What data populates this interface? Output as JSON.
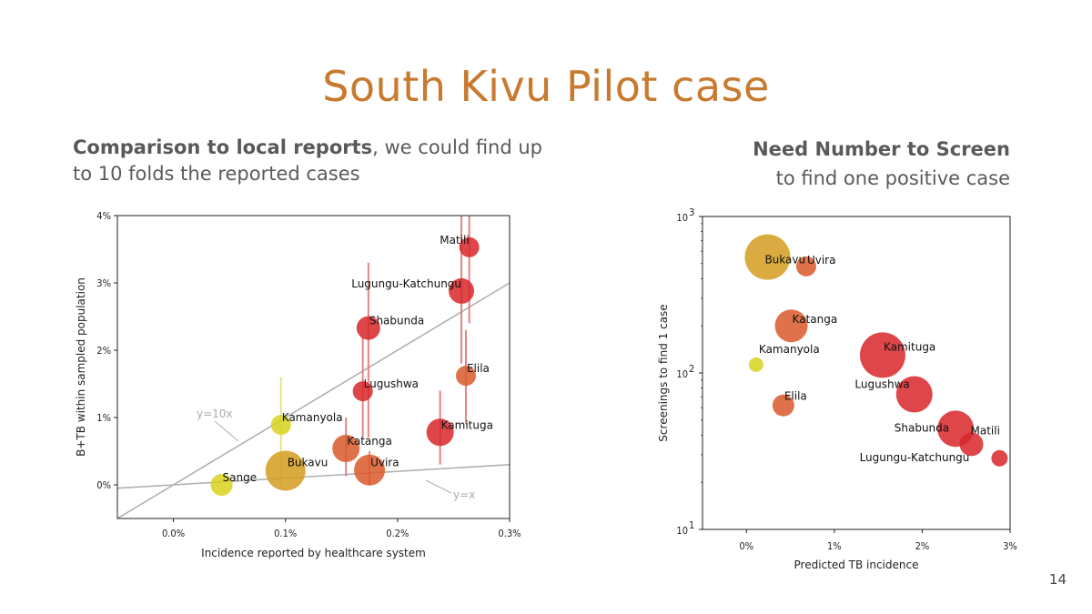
{
  "slide": {
    "title": "South Kivu Pilot case",
    "left_subtitle_bold": "Comparison to local reports",
    "left_subtitle_rest": ", we could find up to 10 folds the reported cases",
    "right_subtitle_bold": "Need Number to Screen",
    "right_subtitle_rest": "to find one positive case",
    "page_number": "14"
  },
  "colors": {
    "title": "#c87a2f",
    "low": "#d8d21c",
    "mid_low": "#d49c1e",
    "mid": "#d9592a",
    "high": "#d8262a",
    "reference_line": "#b0b0b0",
    "error_bar": "#e07070"
  },
  "chart_data": [
    {
      "type": "scatter",
      "xlabel": "Incidence reported by healthcare system",
      "ylabel": "B+TB within sampled population",
      "xlim": [
        -0.0005,
        0.003
      ],
      "ylim": [
        -0.005,
        0.04
      ],
      "x_ticks": [
        0.0,
        0.001,
        0.002,
        0.003
      ],
      "x_tick_labels": [
        "0.0%",
        "0.1%",
        "0.2%",
        "0.3%"
      ],
      "y_ticks": [
        0.0,
        0.01,
        0.02,
        0.03,
        0.04
      ],
      "y_tick_labels": [
        "0%",
        "1%",
        "2%",
        "3%",
        "4%"
      ],
      "reference_lines": [
        {
          "label": "y=10x",
          "slope": 10
        },
        {
          "label": "y=x",
          "slope": 1
        }
      ],
      "points": [
        {
          "name": "Sange",
          "x": 0.00043,
          "y": 0.0,
          "size": 12,
          "color": "low",
          "err": [
            0.0,
            0.0
          ]
        },
        {
          "name": "Kamanyola",
          "x": 0.00096,
          "y": 0.0089,
          "size": 11,
          "color": "low",
          "err": [
            0.0,
            0.016
          ]
        },
        {
          "name": "Bukavu",
          "x": 0.001,
          "y": 0.0021,
          "size": 22,
          "color": "mid_low",
          "err": [
            0.0,
            0.0
          ]
        },
        {
          "name": "Katanga",
          "x": 0.00154,
          "y": 0.0054,
          "size": 15,
          "color": "mid",
          "err": [
            0.0013,
            0.01
          ]
        },
        {
          "name": "Uvira",
          "x": 0.00175,
          "y": 0.0022,
          "size": 17,
          "color": "mid",
          "err": [
            0.0,
            0.005
          ]
        },
        {
          "name": "Lugushwa",
          "x": 0.00169,
          "y": 0.0139,
          "size": 11,
          "color": "high",
          "err": [
            0.007,
            0.022
          ]
        },
        {
          "name": "Shabunda",
          "x": 0.00174,
          "y": 0.0233,
          "size": 13,
          "color": "high",
          "err": [
            0.007,
            0.033
          ]
        },
        {
          "name": "Lugungu-Katchungu",
          "x": 0.00257,
          "y": 0.0288,
          "size": 14,
          "color": "high",
          "err": [
            0.018,
            0.04
          ]
        },
        {
          "name": "Matili",
          "x": 0.00264,
          "y": 0.0353,
          "size": 11,
          "color": "high",
          "err": [
            0.024,
            0.04
          ]
        },
        {
          "name": "Elila",
          "x": 0.00261,
          "y": 0.0162,
          "size": 11,
          "color": "mid",
          "err": [
            0.009,
            0.023
          ]
        },
        {
          "name": "Kamituga",
          "x": 0.00238,
          "y": 0.0078,
          "size": 15,
          "color": "high",
          "err": [
            0.003,
            0.014
          ]
        }
      ]
    },
    {
      "type": "scatter",
      "xlabel": "Predicted TB incidence",
      "ylabel": "Screenings to find 1 case",
      "y_scale": "log",
      "xlim": [
        -0.005,
        0.03
      ],
      "ylim": [
        10,
        1000
      ],
      "x_ticks": [
        0.0,
        0.01,
        0.02,
        0.03
      ],
      "x_tick_labels": [
        "0%",
        "1%",
        "2%",
        "3%"
      ],
      "y_ticks": [
        10,
        100,
        1000
      ],
      "y_tick_labels": [
        "10",
        "10",
        "10"
      ],
      "y_tick_exponents": [
        "1",
        "2",
        "3"
      ],
      "points": [
        {
          "name": "Bukavu",
          "x": 0.0024,
          "y": 550,
          "size": 25,
          "color": "mid_low"
        },
        {
          "name": "Uvira",
          "x": 0.0068,
          "y": 480,
          "size": 11,
          "color": "mid"
        },
        {
          "name": "Katanga",
          "x": 0.0051,
          "y": 200,
          "size": 18,
          "color": "mid"
        },
        {
          "name": "Kamanyola",
          "x": 0.0011,
          "y": 113,
          "size": 8,
          "color": "low"
        },
        {
          "name": "Elila",
          "x": 0.0042,
          "y": 62,
          "size": 12,
          "color": "mid"
        },
        {
          "name": "Kamituga",
          "x": 0.0155,
          "y": 130,
          "size": 25,
          "color": "high"
        },
        {
          "name": "Lugushwa",
          "x": 0.0191,
          "y": 73,
          "size": 20,
          "color": "high"
        },
        {
          "name": "Shabunda",
          "x": 0.0238,
          "y": 44,
          "size": 20,
          "color": "high"
        },
        {
          "name": "Matili",
          "x": 0.0256,
          "y": 35,
          "size": 13,
          "color": "high"
        },
        {
          "name": "Lugungu-Katchungu",
          "x": 0.0288,
          "y": 28.5,
          "size": 9,
          "color": "high"
        }
      ]
    }
  ]
}
